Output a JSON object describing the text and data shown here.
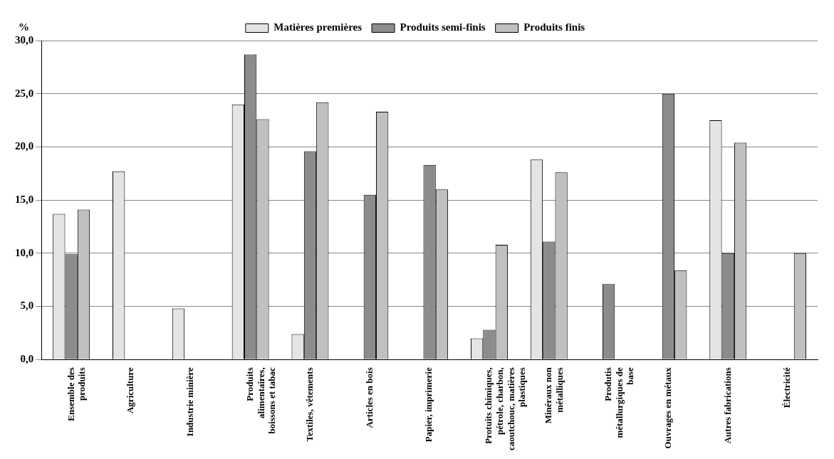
{
  "chart_data": {
    "type": "bar",
    "ylabel": "%",
    "categories": [
      "Ensemble des produits",
      "Agriculture",
      "Industrie minière",
      "Produits alimentaires, boissons et tabac",
      "Textiles, vêtements",
      "Articles en bois",
      "Papier, imprimerie",
      "Protuits chimiques, pétrole, charbon, caoutchouc, matières plastiques",
      "Minéraux non métalliques",
      "Produtis métallurgiques de base",
      "Ouvrages en métaux",
      "Autres fabrications",
      "Électricité"
    ],
    "series": [
      {
        "name": "Matières premières",
        "color": "#e4e4e4",
        "values": [
          13.7,
          17.7,
          4.8,
          24.0,
          2.4,
          null,
          null,
          2.0,
          18.8,
          null,
          null,
          22.5,
          null
        ]
      },
      {
        "name": "Produits semi-finis",
        "color": "#8c8c8c",
        "values": [
          9.9,
          null,
          null,
          28.7,
          19.6,
          15.5,
          18.3,
          2.8,
          11.1,
          7.1,
          25.0,
          10.0,
          null
        ]
      },
      {
        "name": "Produits finis",
        "color": "#c0c0c0",
        "values": [
          14.1,
          null,
          null,
          22.6,
          24.2,
          23.3,
          16.0,
          10.8,
          17.6,
          null,
          8.4,
          20.4,
          10.0
        ]
      }
    ],
    "ylim": [
      0,
      30
    ],
    "yticks": [
      {
        "value": 0,
        "label": "0,0"
      },
      {
        "value": 5,
        "label": "5,0"
      },
      {
        "value": 10,
        "label": "10,0"
      },
      {
        "value": 15,
        "label": "15,0"
      },
      {
        "value": 20,
        "label": "20,0"
      },
      {
        "value": 25,
        "label": "25,0"
      },
      {
        "value": 30,
        "label": "30,0"
      }
    ],
    "grid": "y",
    "legend": "top"
  }
}
